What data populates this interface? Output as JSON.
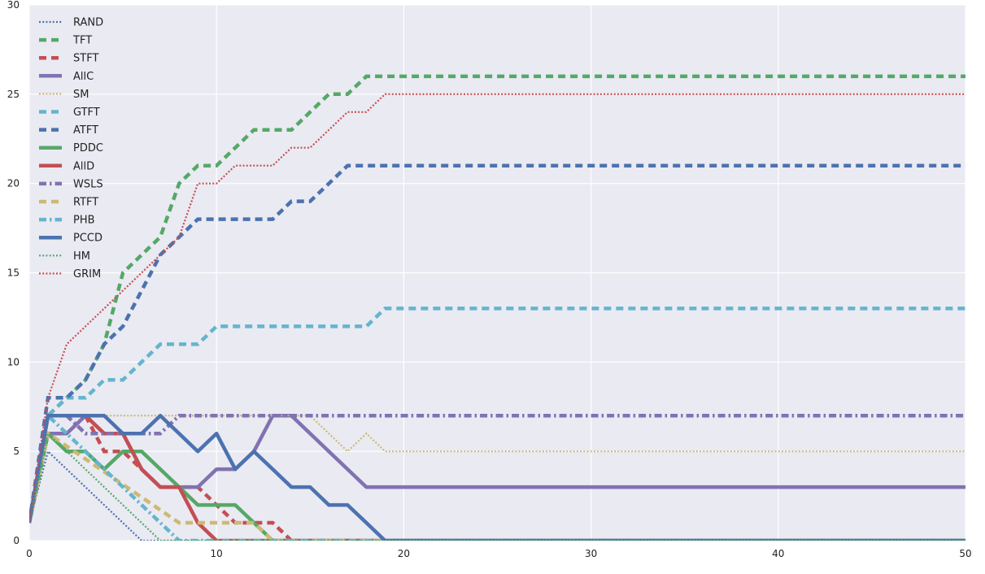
{
  "chart_data": {
    "type": "line",
    "title": "",
    "xlabel": "",
    "ylabel": "",
    "xlim": [
      0,
      50
    ],
    "ylim": [
      0,
      30
    ],
    "xticks": [
      0,
      10,
      20,
      30,
      40,
      50
    ],
    "yticks": [
      0,
      5,
      10,
      15,
      20,
      25,
      30
    ],
    "grid": true,
    "background": "#eaeaf2",
    "legend_position": "top-left",
    "series": [
      {
        "name": "RAND",
        "color": "#4c72b0",
        "style": "dotted",
        "x": [
          0,
          1,
          6,
          50
        ],
        "y": [
          1,
          5,
          0,
          0
        ]
      },
      {
        "name": "TFT",
        "color": "#55a868",
        "style": "dashed",
        "x": [
          0,
          1,
          2,
          3,
          4,
          5,
          6,
          7,
          8,
          9,
          10,
          11,
          12,
          13,
          14,
          15,
          16,
          17,
          18,
          50
        ],
        "y": [
          1,
          7,
          8,
          9,
          11,
          15,
          16,
          17,
          20,
          21,
          21,
          22,
          23,
          23,
          23,
          24,
          25,
          25,
          26,
          26
        ]
      },
      {
        "name": "STFT",
        "color": "#c44e52",
        "style": "dashed",
        "x": [
          0,
          1,
          3,
          4,
          5,
          6,
          7,
          8,
          9,
          10,
          11,
          12,
          13,
          14,
          50
        ],
        "y": [
          1,
          7,
          7,
          5,
          5,
          4,
          3,
          3,
          3,
          2,
          1,
          1,
          1,
          0,
          0
        ]
      },
      {
        "name": "AllC",
        "color": "#8172b2",
        "style": "solid",
        "x": [
          0,
          1,
          2,
          3,
          4,
          5,
          6,
          7,
          8,
          9,
          10,
          11,
          12,
          13,
          14,
          15,
          16,
          17,
          18,
          50
        ],
        "y": [
          1,
          6,
          6,
          7,
          6,
          6,
          4,
          3,
          3,
          3,
          4,
          4,
          5,
          7,
          7,
          6,
          5,
          4,
          3,
          3
        ]
      },
      {
        "name": "SM",
        "color": "#ccb974",
        "style": "dotted",
        "x": [
          0,
          1,
          15,
          16,
          17,
          18,
          19,
          50
        ],
        "y": [
          1,
          7,
          7,
          6,
          5,
          6,
          5,
          5
        ]
      },
      {
        "name": "GTFT",
        "color": "#64b5cd",
        "style": "dashed",
        "x": [
          0,
          1,
          2,
          3,
          4,
          5,
          6,
          7,
          8,
          9,
          10,
          11,
          12,
          13,
          14,
          15,
          16,
          17,
          18,
          19,
          50
        ],
        "y": [
          1,
          7,
          8,
          8,
          9,
          9,
          10,
          11,
          11,
          11,
          12,
          12,
          12,
          12,
          12,
          12,
          12,
          12,
          12,
          13,
          13
        ]
      },
      {
        "name": "ATFT",
        "color": "#4c72b0",
        "style": "dashed",
        "x": [
          0,
          1,
          2,
          3,
          4,
          5,
          6,
          7,
          8,
          9,
          10,
          11,
          12,
          13,
          14,
          15,
          16,
          17,
          18,
          50
        ],
        "y": [
          1,
          8,
          8,
          9,
          11,
          12,
          14,
          16,
          17,
          18,
          18,
          18,
          18,
          18,
          19,
          19,
          20,
          21,
          21,
          21
        ]
      },
      {
        "name": "PDDC",
        "color": "#55a868",
        "style": "solid",
        "x": [
          0,
          1,
          2,
          3,
          4,
          5,
          6,
          7,
          8,
          9,
          10,
          11,
          12,
          13,
          50
        ],
        "y": [
          1,
          6,
          5,
          5,
          4,
          5,
          5,
          4,
          3,
          2,
          2,
          2,
          1,
          0,
          0
        ]
      },
      {
        "name": "AllD",
        "color": "#c44e52",
        "style": "solid",
        "x": [
          0,
          1,
          2,
          3,
          4,
          5,
          6,
          7,
          8,
          9,
          10,
          50
        ],
        "y": [
          1,
          7,
          7,
          7,
          6,
          6,
          4,
          3,
          3,
          1,
          0,
          0
        ]
      },
      {
        "name": "WSLS",
        "color": "#8172b2",
        "style": "dashdot",
        "x": [
          0,
          1,
          2,
          3,
          4,
          5,
          6,
          7,
          8,
          50
        ],
        "y": [
          1,
          7,
          7,
          6,
          6,
          6,
          6,
          6,
          7,
          7
        ]
      },
      {
        "name": "RTFT",
        "color": "#ccb974",
        "style": "dashed",
        "x": [
          0,
          1,
          8,
          12,
          13,
          50
        ],
        "y": [
          1,
          6,
          1,
          1,
          0,
          0
        ]
      },
      {
        "name": "PHB",
        "color": "#64b5cd",
        "style": "dashdot",
        "x": [
          0,
          1,
          8,
          50
        ],
        "y": [
          1,
          7,
          0,
          0
        ]
      },
      {
        "name": "PCCD",
        "color": "#4c72b0",
        "style": "solid",
        "x": [
          0,
          1,
          2,
          3,
          4,
          5,
          6,
          7,
          8,
          9,
          10,
          11,
          12,
          13,
          14,
          15,
          16,
          17,
          18,
          19,
          50
        ],
        "y": [
          1,
          7,
          7,
          7,
          7,
          6,
          6,
          7,
          6,
          5,
          6,
          4,
          5,
          4,
          3,
          3,
          2,
          2,
          1,
          0,
          0
        ]
      },
      {
        "name": "HM",
        "color": "#55a868",
        "style": "dotted",
        "x": [
          0,
          1,
          7,
          50
        ],
        "y": [
          1,
          6,
          0,
          0
        ]
      },
      {
        "name": "GRIM",
        "color": "#c44e52",
        "style": "dotted",
        "x": [
          0,
          1,
          2,
          3,
          4,
          5,
          6,
          7,
          8,
          9,
          10,
          11,
          12,
          13,
          14,
          15,
          16,
          17,
          18,
          19,
          50
        ],
        "y": [
          1,
          8,
          11,
          12,
          13,
          14,
          15,
          16,
          17,
          20,
          20,
          21,
          21,
          21,
          22,
          22,
          23,
          24,
          24,
          25,
          25
        ]
      }
    ]
  }
}
